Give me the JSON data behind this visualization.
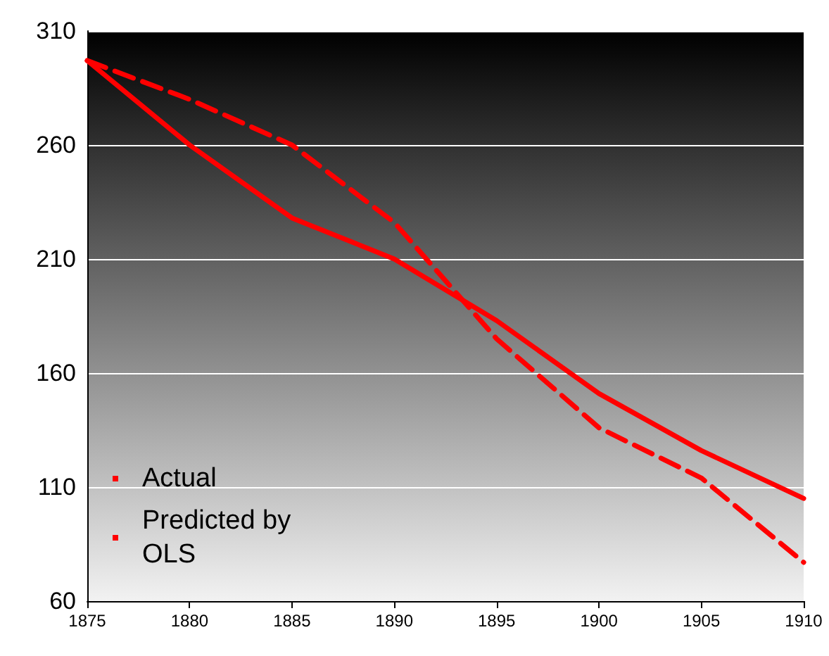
{
  "chart_data": {
    "type": "line",
    "x": [
      1875,
      1880,
      1885,
      1890,
      1895,
      1900,
      1905,
      1910
    ],
    "series": [
      {
        "name": "Actual",
        "color": "#ff0000",
        "line_style": "solid",
        "values": [
          297,
          260,
          228,
          210,
          183,
          151,
          126,
          105
        ]
      },
      {
        "name": "Predicted by OLS",
        "color": "#ff0000",
        "line_style": "dashed",
        "values": [
          297,
          280,
          260,
          226,
          175,
          136,
          114,
          77
        ]
      }
    ],
    "xlim": [
      1875,
      1910
    ],
    "xticks": [
      1875,
      1880,
      1885,
      1890,
      1895,
      1900,
      1905,
      1910
    ],
    "ylim": [
      60,
      310
    ],
    "yticks": [
      60,
      110,
      160,
      210,
      260,
      310
    ],
    "grid": "y",
    "legend": "bottom left",
    "marker": "none"
  }
}
